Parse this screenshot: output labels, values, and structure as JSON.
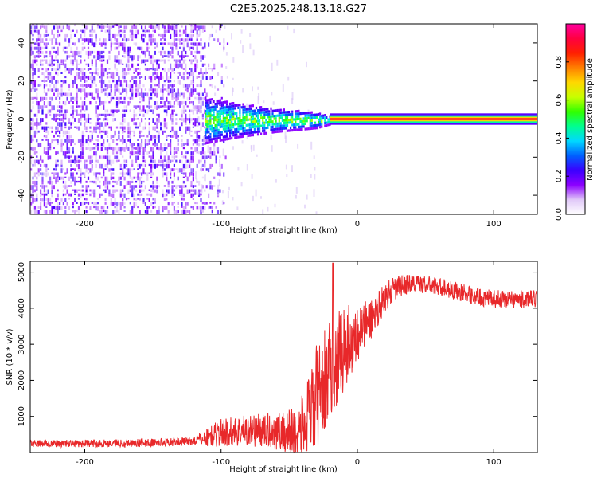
{
  "title": "C2E5.2025.248.13.18.G27",
  "colors": {
    "frame": "#000000",
    "snr_line": "#e8282a",
    "noise_cloud": "#7a1ee0",
    "noise_cloud_light": "#c9a8f0",
    "carrier": "#e81a1a"
  },
  "chart_data": [
    {
      "id": "spectrogram",
      "type": "heatmap",
      "xlabel": "Height of straight line (km)",
      "ylabel": "Frequency (Hz)",
      "xlim": [
        -240,
        132
      ],
      "ylim": [
        -50,
        50
      ],
      "xticks": [
        -200,
        -100,
        0,
        100
      ],
      "yticks": [
        -40,
        -20,
        0,
        20,
        40
      ],
      "xtick_labels": [
        "-200",
        "-100",
        "0",
        "100"
      ],
      "ytick_labels": [
        "-40",
        "-20",
        "0",
        "20",
        "40"
      ],
      "colorbar": {
        "label": "Normalized spectral amplitude",
        "range": [
          0,
          1
        ],
        "ticks": [
          0.0,
          0.2,
          0.4,
          0.6,
          0.8
        ],
        "tick_labels": [
          "0.0",
          "0.2",
          "0.4",
          "0.6",
          "0.8"
        ],
        "colormap": [
          "#ffffff",
          "#e0c8f8",
          "#8c00ff",
          "#3a00ff",
          "#0060ff",
          "#00d8ff",
          "#00ff90",
          "#30ff00",
          "#c8ff00",
          "#ffd800",
          "#ff8000",
          "#ff2000",
          "#ff0040",
          "#ff00a0"
        ]
      },
      "regions": [
        {
          "name": "noise",
          "x_from": -240,
          "x_to": -112,
          "freq_from": -50,
          "freq_to": 50,
          "amplitude": 0.08
        },
        {
          "name": "transition",
          "x_from": -112,
          "x_to": -20,
          "freq_from": -10,
          "freq_to": 10,
          "amplitude": 0.35
        },
        {
          "name": "carrier",
          "x_from": -20,
          "x_to": 132,
          "freq_center": 0,
          "amplitude": 0.9
        }
      ]
    },
    {
      "id": "snr",
      "type": "line",
      "xlabel": "Height of straight line (km)",
      "ylabel": "SNR (10 * v/v)",
      "xlim": [
        -240,
        132
      ],
      "ylim": [
        0,
        5300
      ],
      "xticks": [
        -200,
        -100,
        0,
        100
      ],
      "yticks": [
        1000,
        2000,
        3000,
        4000,
        5000
      ],
      "xtick_labels": [
        "-200",
        "-100",
        "0",
        "100"
      ],
      "ytick_labels": [
        "1000",
        "2000",
        "3000",
        "4000",
        "5000"
      ],
      "envelope": {
        "x": [
          -240,
          -200,
          -150,
          -120,
          -110,
          -100,
          -80,
          -60,
          -45,
          -38,
          -30,
          -20,
          -10,
          0,
          10,
          20,
          30,
          40,
          50,
          60,
          70,
          80,
          90,
          100,
          110,
          120,
          132
        ],
        "y": [
          250,
          250,
          270,
          320,
          420,
          550,
          620,
          600,
          520,
          800,
          1500,
          2300,
          2900,
          3300,
          3700,
          4300,
          4600,
          4700,
          4650,
          4600,
          4500,
          4400,
          4300,
          4250,
          4250,
          4250,
          4250
        ]
      },
      "noise_amplitude": {
        "x": [
          -240,
          -120,
          -100,
          -60,
          -40,
          -30,
          -10,
          0,
          20,
          40,
          132
        ],
        "y": [
          100,
          120,
          400,
          500,
          900,
          1500,
          1200,
          800,
          400,
          250,
          250
        ]
      },
      "spike": {
        "x": -18,
        "y": 5250
      }
    }
  ]
}
